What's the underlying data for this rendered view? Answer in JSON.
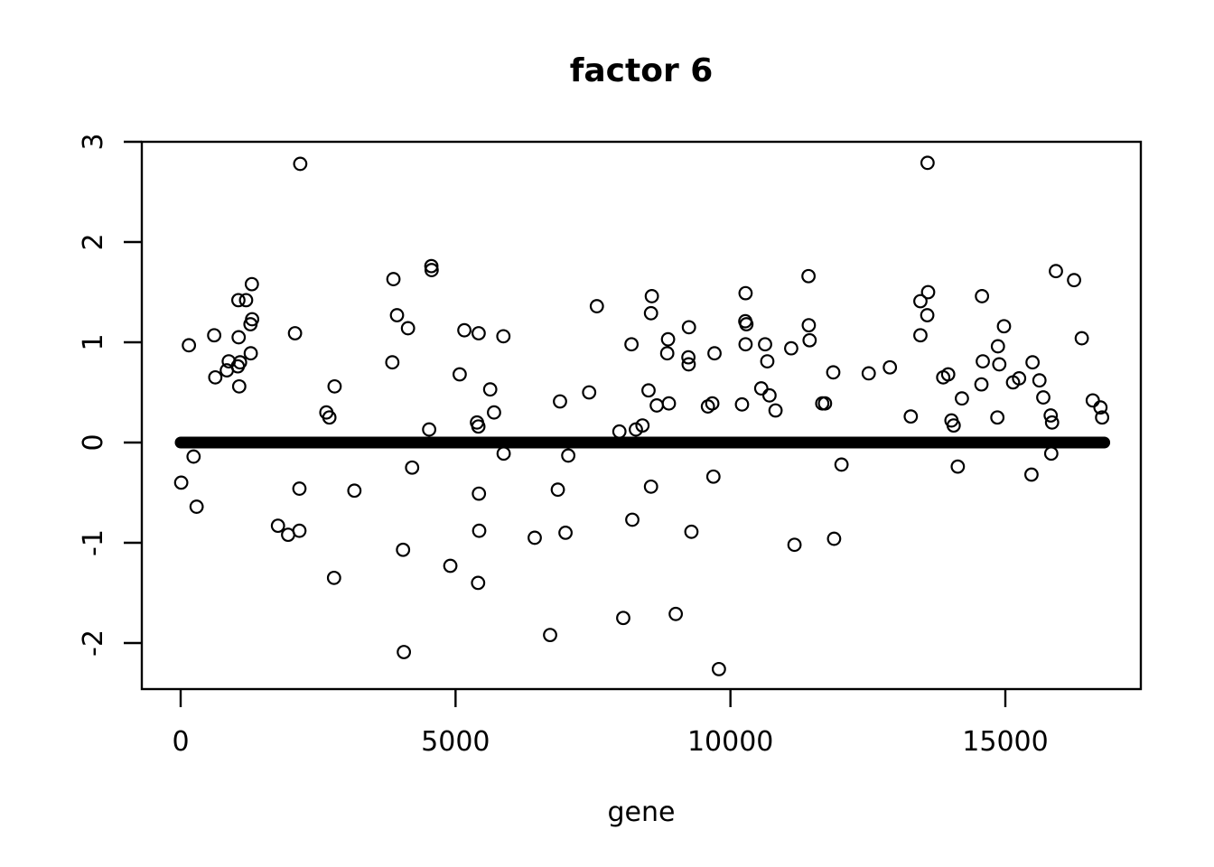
{
  "figure": {
    "background": "#ffffff",
    "foreground": "#000000"
  },
  "chart_data": {
    "type": "scatter",
    "title": "factor 6",
    "xlabel": "gene",
    "ylabel": "",
    "x_ticks": [
      0,
      5000,
      10000,
      15000
    ],
    "y_ticks": [
      3,
      2,
      1,
      0,
      -1,
      -2
    ],
    "xlim": [
      -700,
      17450
    ],
    "ylim": [
      -2.46,
      3.0
    ],
    "grid": false,
    "legend": "none",
    "marker": {
      "shape": "open-circle",
      "color": "#000000"
    },
    "zero_band": {
      "value": 0,
      "gene_start": 0,
      "gene_end": 16800,
      "description": "dense run of near-zero loadings forming a solid black horizontal band at y = 0"
    },
    "points": [
      [
        10,
        -0.4
      ],
      [
        150,
        0.97
      ],
      [
        235,
        -0.14
      ],
      [
        290,
        -0.64
      ],
      [
        610,
        1.07
      ],
      [
        630,
        0.65
      ],
      [
        840,
        0.72
      ],
      [
        875,
        0.81
      ],
      [
        1040,
        0.76
      ],
      [
        1050,
        1.42
      ],
      [
        1055,
        1.05
      ],
      [
        1065,
        0.56
      ],
      [
        1080,
        0.8
      ],
      [
        1190,
        1.42
      ],
      [
        1270,
        1.18
      ],
      [
        1275,
        0.89
      ],
      [
        1295,
        1.58
      ],
      [
        1300,
        1.23
      ],
      [
        1770,
        -0.83
      ],
      [
        1955,
        -0.92
      ],
      [
        2080,
        1.09
      ],
      [
        2160,
        -0.46
      ],
      [
        2160,
        -0.88
      ],
      [
        2175,
        2.78
      ],
      [
        2650,
        0.3
      ],
      [
        2705,
        0.25
      ],
      [
        2790,
        -1.35
      ],
      [
        2800,
        0.56
      ],
      [
        3160,
        -0.48
      ],
      [
        3850,
        0.8
      ],
      [
        3870,
        1.63
      ],
      [
        3935,
        1.27
      ],
      [
        4045,
        -1.07
      ],
      [
        4060,
        -2.09
      ],
      [
        4135,
        1.14
      ],
      [
        4210,
        -0.25
      ],
      [
        4520,
        0.13
      ],
      [
        4560,
        1.76
      ],
      [
        4565,
        1.72
      ],
      [
        4905,
        -1.23
      ],
      [
        5075,
        0.68
      ],
      [
        5160,
        1.12
      ],
      [
        5390,
        0.2
      ],
      [
        5415,
        0.16
      ],
      [
        5410,
        -1.4
      ],
      [
        5420,
        1.09
      ],
      [
        5425,
        -0.51
      ],
      [
        5430,
        -0.88
      ],
      [
        5630,
        0.53
      ],
      [
        5700,
        0.3
      ],
      [
        5870,
        1.06
      ],
      [
        5875,
        -0.11
      ],
      [
        6440,
        -0.95
      ],
      [
        6720,
        -1.92
      ],
      [
        6860,
        -0.47
      ],
      [
        6900,
        0.41
      ],
      [
        7000,
        -0.9
      ],
      [
        7050,
        -0.13
      ],
      [
        7430,
        0.5
      ],
      [
        7570,
        1.36
      ],
      [
        7980,
        0.11
      ],
      [
        8050,
        -1.75
      ],
      [
        8200,
        0.98
      ],
      [
        8215,
        -0.77
      ],
      [
        8280,
        0.13
      ],
      [
        8400,
        0.17
      ],
      [
        8510,
        0.52
      ],
      [
        8555,
        1.29
      ],
      [
        8555,
        -0.44
      ],
      [
        8570,
        1.46
      ],
      [
        8660,
        0.37
      ],
      [
        8850,
        0.89
      ],
      [
        8865,
        1.03
      ],
      [
        8880,
        0.39
      ],
      [
        9005,
        -1.71
      ],
      [
        9235,
        0.85
      ],
      [
        9240,
        0.78
      ],
      [
        9245,
        1.15
      ],
      [
        9290,
        -0.89
      ],
      [
        9590,
        0.36
      ],
      [
        9670,
        0.39
      ],
      [
        9690,
        -0.34
      ],
      [
        9710,
        0.89
      ],
      [
        9790,
        -2.26
      ],
      [
        10210,
        0.38
      ],
      [
        10275,
        1.49
      ],
      [
        10270,
        1.21
      ],
      [
        10290,
        1.18
      ],
      [
        10275,
        0.98
      ],
      [
        10560,
        0.54
      ],
      [
        10630,
        0.98
      ],
      [
        10670,
        0.81
      ],
      [
        10710,
        0.47
      ],
      [
        10820,
        0.32
      ],
      [
        11105,
        0.94
      ],
      [
        11165,
        -1.02
      ],
      [
        11420,
        1.66
      ],
      [
        11425,
        1.17
      ],
      [
        11440,
        1.02
      ],
      [
        11670,
        0.39
      ],
      [
        11720,
        0.39
      ],
      [
        11870,
        0.7
      ],
      [
        11885,
        -0.96
      ],
      [
        12020,
        -0.22
      ],
      [
        12515,
        0.69
      ],
      [
        12900,
        0.75
      ],
      [
        13280,
        0.26
      ],
      [
        13455,
        1.41
      ],
      [
        13455,
        1.07
      ],
      [
        13580,
        1.27
      ],
      [
        13585,
        2.79
      ],
      [
        13595,
        1.5
      ],
      [
        13870,
        0.65
      ],
      [
        13960,
        0.68
      ],
      [
        14020,
        0.22
      ],
      [
        14060,
        0.17
      ],
      [
        14135,
        -0.24
      ],
      [
        14210,
        0.44
      ],
      [
        14590,
        0.81
      ],
      [
        14565,
        0.58
      ],
      [
        14575,
        1.46
      ],
      [
        14855,
        0.25
      ],
      [
        14890,
        0.78
      ],
      [
        14865,
        0.96
      ],
      [
        14975,
        1.16
      ],
      [
        15140,
        0.6
      ],
      [
        15250,
        0.64
      ],
      [
        15475,
        -0.32
      ],
      [
        15495,
        0.8
      ],
      [
        15620,
        0.62
      ],
      [
        15690,
        0.45
      ],
      [
        15825,
        0.27
      ],
      [
        15850,
        0.2
      ],
      [
        15835,
        -0.11
      ],
      [
        15920,
        1.71
      ],
      [
        16250,
        1.62
      ],
      [
        16390,
        1.04
      ],
      [
        16590,
        0.42
      ],
      [
        16730,
        0.35
      ],
      [
        16760,
        0.25
      ]
    ]
  }
}
